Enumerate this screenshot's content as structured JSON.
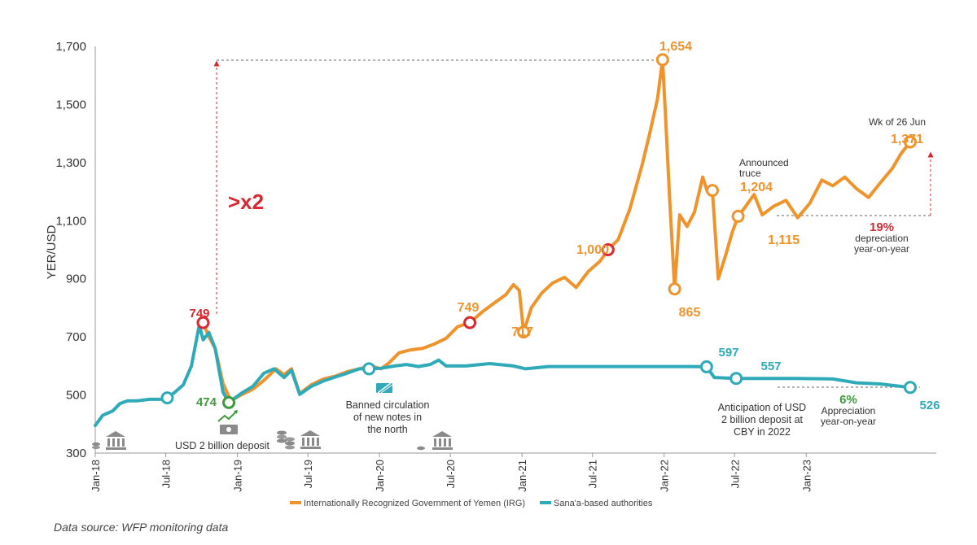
{
  "chart_data": {
    "type": "line",
    "ylabel": "YER/USD",
    "ylim": [
      300,
      1700
    ],
    "yticks": [
      300,
      500,
      700,
      900,
      1100,
      1300,
      1500,
      1700
    ],
    "ytick_labels": [
      "300",
      "500",
      "700",
      "900",
      "1,100",
      "1,300",
      "1,500",
      "1,700"
    ],
    "xlim": [
      "2018-01",
      "2023-12"
    ],
    "xticks": [
      "2018-01",
      "2018-07",
      "2019-01",
      "2019-07",
      "2020-01",
      "2020-07",
      "2021-01",
      "2021-07",
      "2022-01",
      "2022-07",
      "2023-01"
    ],
    "xtick_labels": [
      "Jan-18",
      "Jul-18",
      "Jan-19",
      "Jul-19",
      "Jan-20",
      "Jul-20",
      "Jan-21",
      "Jul-21",
      "Jan-22",
      "Jul-22",
      "Jan-23"
    ],
    "grid": false,
    "legend_position": "bottom-center",
    "series": [
      {
        "name": "Internationally Recognized Government of Yemen (IRG)",
        "color": "#f0932b",
        "points": [
          [
            "2018-10-05",
            749
          ],
          [
            "2018-10-20",
            700
          ],
          [
            "2018-11-05",
            660
          ],
          [
            "2018-11-25",
            540
          ],
          [
            "2018-12-15",
            480
          ],
          [
            "2019-01-10",
            500
          ],
          [
            "2019-02-10",
            520
          ],
          [
            "2019-03-10",
            550
          ],
          [
            "2019-04-10",
            590
          ],
          [
            "2019-05-01",
            570
          ],
          [
            "2019-05-20",
            590
          ],
          [
            "2019-06-10",
            505
          ],
          [
            "2019-07-10",
            535
          ],
          [
            "2019-08-10",
            555
          ],
          [
            "2019-09-10",
            565
          ],
          [
            "2019-10-10",
            580
          ],
          [
            "2019-11-10",
            590
          ],
          [
            "2019-12-10",
            600
          ],
          [
            "2020-01-05",
            590
          ],
          [
            "2020-01-25",
            610
          ],
          [
            "2020-02-20",
            645
          ],
          [
            "2020-03-20",
            655
          ],
          [
            "2020-04-20",
            660
          ],
          [
            "2020-05-20",
            675
          ],
          [
            "2020-06-20",
            695
          ],
          [
            "2020-07-20",
            735
          ],
          [
            "2020-08-20",
            749
          ],
          [
            "2020-09-20",
            785
          ],
          [
            "2020-10-20",
            815
          ],
          [
            "2020-11-20",
            845
          ],
          [
            "2020-12-10",
            880
          ],
          [
            "2020-12-25",
            860
          ],
          [
            "2021-01-05",
            717
          ],
          [
            "2021-01-25",
            800
          ],
          [
            "2021-02-20",
            850
          ],
          [
            "2021-03-20",
            885
          ],
          [
            "2021-04-20",
            905
          ],
          [
            "2021-05-20",
            870
          ],
          [
            "2021-06-20",
            925
          ],
          [
            "2021-07-20",
            960
          ],
          [
            "2021-08-10",
            1000
          ],
          [
            "2021-09-05",
            1035
          ],
          [
            "2021-10-05",
            1140
          ],
          [
            "2021-11-05",
            1290
          ],
          [
            "2021-11-25",
            1400
          ],
          [
            "2021-12-15",
            1520
          ],
          [
            "2021-12-28",
            1654
          ],
          [
            "2022-01-05",
            1450
          ],
          [
            "2022-01-15",
            1180
          ],
          [
            "2022-01-28",
            865
          ],
          [
            "2022-02-10",
            1120
          ],
          [
            "2022-03-01",
            1080
          ],
          [
            "2022-03-20",
            1130
          ],
          [
            "2022-04-10",
            1250
          ],
          [
            "2022-04-22",
            1200
          ],
          [
            "2022-05-05",
            1204
          ],
          [
            "2022-05-20",
            900
          ],
          [
            "2022-06-10",
            990
          ],
          [
            "2022-06-25",
            1060
          ],
          [
            "2022-07-10",
            1115
          ],
          [
            "2022-07-30",
            1150
          ],
          [
            "2022-08-20",
            1190
          ],
          [
            "2022-09-10",
            1120
          ],
          [
            "2022-10-10",
            1150
          ],
          [
            "2022-11-10",
            1170
          ],
          [
            "2022-12-10",
            1110
          ],
          [
            "2023-01-10",
            1160
          ],
          [
            "2023-02-10",
            1240
          ],
          [
            "2023-03-10",
            1220
          ],
          [
            "2023-04-10",
            1250
          ],
          [
            "2023-05-10",
            1210
          ],
          [
            "2023-06-10",
            1180
          ],
          [
            "2023-07-10",
            1230
          ],
          [
            "2023-08-10",
            1280
          ],
          [
            "2023-09-01",
            1330
          ],
          [
            "2023-09-25",
            1371
          ]
        ]
      },
      {
        "name": "Sana'a-based authorities",
        "color": "#2eaab8",
        "points": [
          [
            "2018-01-01",
            395
          ],
          [
            "2018-01-20",
            430
          ],
          [
            "2018-02-15",
            445
          ],
          [
            "2018-03-05",
            470
          ],
          [
            "2018-03-25",
            480
          ],
          [
            "2018-04-20",
            480
          ],
          [
            "2018-05-20",
            485
          ],
          [
            "2018-06-20",
            485
          ],
          [
            "2018-07-05",
            490
          ],
          [
            "2018-07-25",
            510
          ],
          [
            "2018-08-15",
            535
          ],
          [
            "2018-09-05",
            600
          ],
          [
            "2018-09-25",
            740
          ],
          [
            "2018-10-05",
            690
          ],
          [
            "2018-10-20",
            715
          ],
          [
            "2018-11-05",
            660
          ],
          [
            "2018-11-25",
            510
          ],
          [
            "2018-12-10",
            474
          ],
          [
            "2019-01-10",
            505
          ],
          [
            "2019-02-10",
            530
          ],
          [
            "2019-03-10",
            575
          ],
          [
            "2019-04-05",
            590
          ],
          [
            "2019-05-01",
            560
          ],
          [
            "2019-05-20",
            585
          ],
          [
            "2019-06-10",
            502
          ],
          [
            "2019-07-10",
            530
          ],
          [
            "2019-08-10",
            548
          ],
          [
            "2019-09-10",
            562
          ],
          [
            "2019-10-10",
            575
          ],
          [
            "2019-11-10",
            590
          ],
          [
            "2019-12-05",
            590
          ],
          [
            "2020-01-05",
            592
          ],
          [
            "2020-02-10",
            600
          ],
          [
            "2020-03-10",
            605
          ],
          [
            "2020-04-10",
            598
          ],
          [
            "2020-05-10",
            605
          ],
          [
            "2020-06-01",
            620
          ],
          [
            "2020-06-20",
            600
          ],
          [
            "2020-08-10",
            600
          ],
          [
            "2020-10-10",
            608
          ],
          [
            "2020-12-10",
            600
          ],
          [
            "2021-01-10",
            590
          ],
          [
            "2021-03-10",
            598
          ],
          [
            "2021-06-10",
            598
          ],
          [
            "2021-09-10",
            598
          ],
          [
            "2021-12-10",
            598
          ],
          [
            "2022-03-10",
            598
          ],
          [
            "2022-04-20",
            597
          ],
          [
            "2022-05-10",
            560
          ],
          [
            "2022-07-05",
            557
          ],
          [
            "2022-09-10",
            557
          ],
          [
            "2022-12-10",
            557
          ],
          [
            "2023-03-10",
            555
          ],
          [
            "2023-05-10",
            542
          ],
          [
            "2023-07-10",
            538
          ],
          [
            "2023-09-25",
            526
          ]
        ]
      }
    ],
    "annotations": {
      "irg_peak": "1,654",
      "irg_end": "1,371",
      "irg_end_date": "Wk of 26 Jun",
      "irg_truce": "1,204",
      "truce_note": [
        "Announced",
        "truce"
      ],
      "irg_1115": "1,115",
      "irg_865": "865",
      "irg_1000": "1,000",
      "irg_749b": "749",
      "irg_717": "717",
      "start_749": "749",
      "sanaa_474": "474",
      "sanaa_597": "597",
      "sanaa_557": "557",
      "sanaa_526": "526",
      "x2": ">x2",
      "depr_pct": "19%",
      "depr_note": [
        "depreciation",
        "year-on-year"
      ],
      "appr_pct": "6%",
      "appr_note": [
        "Appreciation",
        "year-on-year"
      ],
      "usd_deposit": "USD 2 billion deposit",
      "banned_note": [
        "Banned circulation",
        "of new notes in",
        "the north"
      ],
      "cby_note": [
        "Anticipation of USD",
        "2 billion deposit at",
        "CBY in 2022"
      ]
    }
  },
  "source": "Data source: WFP monitoring data"
}
